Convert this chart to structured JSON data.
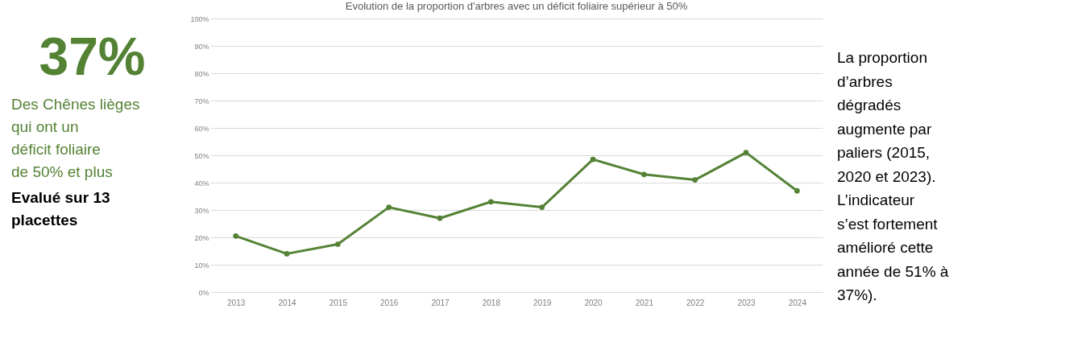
{
  "chart_data": [
    {
      "type": "other",
      "title": "37%",
      "annotations": [
        "Des Chênes lièges qui ont un déficit foliaire de 50% et plus",
        "Evalué sur 13 placettes"
      ]
    },
    {
      "type": "line",
      "title": "Evolution de la proportion d'arbres avec un déficit foliaire supérieur à 50%",
      "categories": [
        "2013",
        "2014",
        "2015",
        "2016",
        "2017",
        "2018",
        "2019",
        "2020",
        "2021",
        "2022",
        "2023",
        "2024"
      ],
      "series": [
        {
          "color": "#548235",
          "values": [
            20.5,
            14,
            17.5,
            31,
            27,
            33,
            31,
            48.5,
            43,
            41,
            51,
            37
          ]
        }
      ],
      "ylim": [
        0,
        100
      ],
      "yticks": [
        {
          "value": 0,
          "label": "0%"
        },
        {
          "value": 10,
          "label": "10%"
        },
        {
          "value": 20,
          "label": "20%"
        },
        {
          "value": 30,
          "label": "30%"
        },
        {
          "value": 40,
          "label": "40%"
        },
        {
          "value": 50,
          "label": "50%"
        },
        {
          "value": 60,
          "label": "60%"
        },
        {
          "value": 70,
          "label": "70%"
        },
        {
          "value": 80,
          "label": "80%"
        },
        {
          "value": 90,
          "label": "90%"
        },
        {
          "value": 100,
          "label": "100%"
        }
      ],
      "grid": "y",
      "marker": "circle",
      "line_style": "solid",
      "legend": false
    },
    {
      "type": "other",
      "annotations": [
        "La proportion d’arbres dégradés augmente par paliers (2015, 2020 et 2023). L’indicateur s’est fortement amélioré cette année de 51% à 37%)."
      ]
    }
  ]
}
